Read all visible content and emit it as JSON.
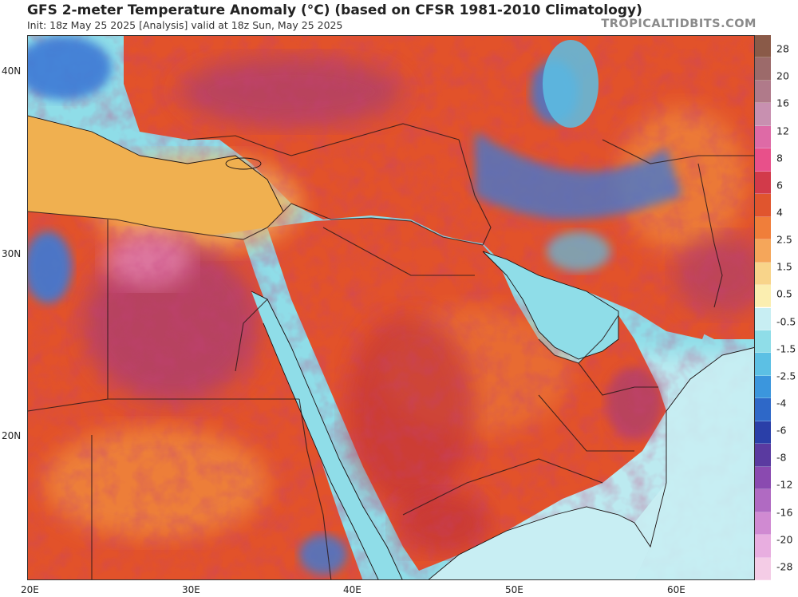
{
  "header": {
    "title": "GFS 2-meter Temperature Anomaly (°C) (based on CFSR 1981-2010 Climatology)",
    "subtitle": "Init: 18z May 25 2025   [Analysis]   valid at 18z Sun, May 25 2025",
    "brand": "TROPICALTIDBITS.COM"
  },
  "map": {
    "lat_labels": [
      "40N",
      "30N",
      "20N"
    ],
    "lon_labels": [
      "20E",
      "30E",
      "40E",
      "50E",
      "60E"
    ],
    "colors": {
      "hot_base": "#e2522a",
      "hot_dark": "#c1303a",
      "hot_purple": "#b0406a",
      "warm_orange": "#f08a3c",
      "warm_light": "#f5b25a",
      "pink": "#e07aa6",
      "sea_cyan": "#8fdde8",
      "sea_light": "#c8eef3",
      "cold_blue": "#3d7ad6",
      "border_line": "#2b1a1a"
    }
  },
  "colorbar": {
    "labels": [
      "28",
      "20",
      "16",
      "12",
      "8",
      "6",
      "4",
      "2.5",
      "1.5",
      "0.5",
      "-0.5",
      "-1.5",
      "-2.5",
      "-4",
      "-6",
      "-8",
      "-12",
      "-16",
      "-20",
      "-28"
    ],
    "colors": [
      "#8a5a48",
      "#9c6a6a",
      "#b07a8a",
      "#c890b0",
      "#de6aa6",
      "#e8508a",
      "#d23a4a",
      "#e0552e",
      "#f07e3a",
      "#f5a65a",
      "#f8d48a",
      "#fbeeb0",
      "#c8eef3",
      "#8fdde8",
      "#5cc0e4",
      "#3b96dd",
      "#2e68c8",
      "#2a3fa8",
      "#5a3aa0",
      "#8a4ab0",
      "#b06ac2",
      "#d08ad2",
      "#e8aee0",
      "#f4cce6"
    ]
  }
}
